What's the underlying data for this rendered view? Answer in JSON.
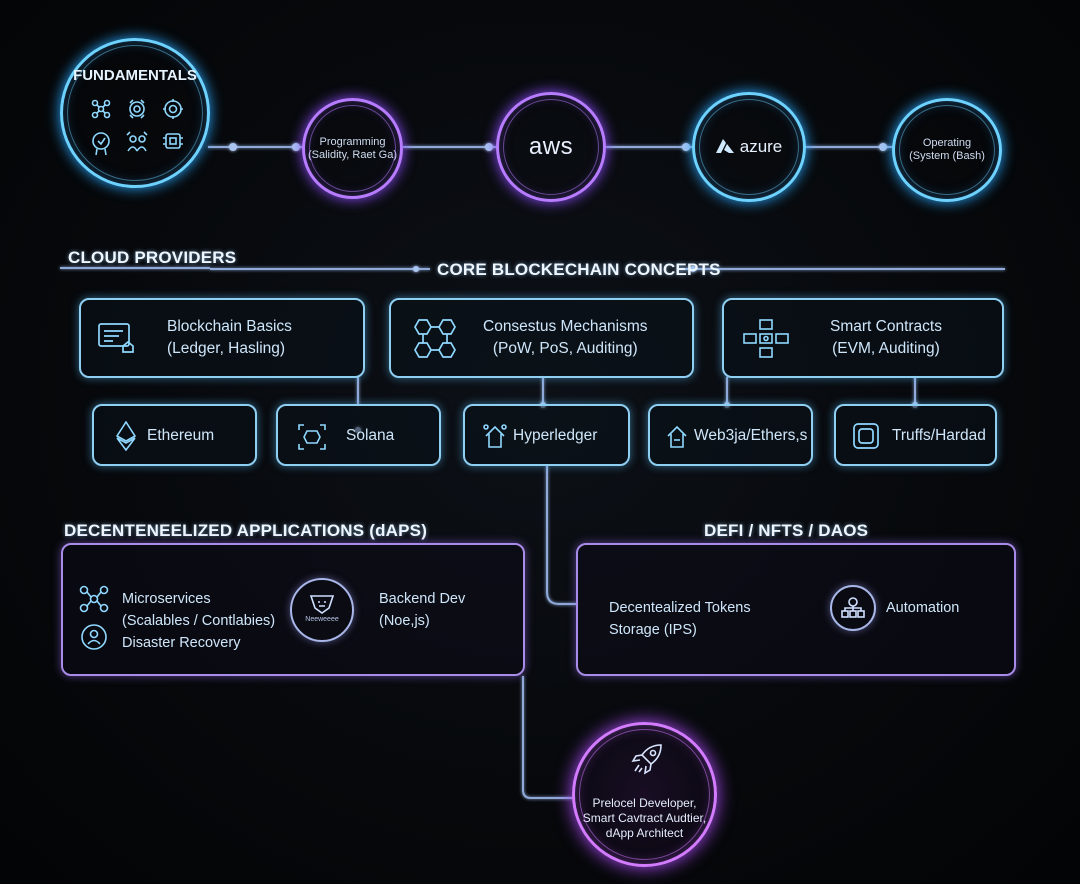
{
  "top_row": {
    "fundamentals": {
      "title": "FUNDAMENTALS"
    },
    "programming": {
      "line1": "Programming",
      "line2": "(Salidity, Raet Ga)"
    },
    "aws": {
      "label": "aws"
    },
    "azure": {
      "label": "azure"
    },
    "operating": {
      "line1": "Operating",
      "line2": "(System (Bash)"
    }
  },
  "section_headings": {
    "cloud_providers": "CLOUD PROVIDERS",
    "core_concepts": "CORE BLOCKECHAIN CONCEPTS",
    "dapps": "DECENTENEELIZED APPLICATIONS (dAPS)",
    "defi": "DEFI / NFTS / DAOS"
  },
  "concept_boxes": [
    {
      "title": "Blockchain Basics",
      "subtitle": "(Ledger, Hasling)"
    },
    {
      "title": "Consestus Mechanisms",
      "subtitle": "(PoW, PoS, Auditing)"
    },
    {
      "title": "Smart Contracts",
      "subtitle": "(EVM, Auditing)"
    }
  ],
  "tools": [
    {
      "label": "Ethereum"
    },
    {
      "label": "Solana"
    },
    {
      "label": "Hyperledger"
    },
    {
      "label": "Web3ja/Ethers,s"
    },
    {
      "label": "Truffs/Hardad"
    }
  ],
  "dapps_box": {
    "microservices_line1": "Microservices",
    "microservices_line2": "(Scalables / Contlabies)",
    "disaster_recovery": "Disaster Recovery",
    "backend_line1": "Backend Dev",
    "backend_line2": "(Noe,js)",
    "badge_text": "Neeweeee"
  },
  "defi_box": {
    "tokens_line1": "Decentealized Tokens",
    "tokens_line2": "Storage (IPS)",
    "automation": "Automation"
  },
  "goal": {
    "line1": "Prelocel Developer,",
    "line2": "Smart Cavtract Audtier,",
    "line3": "dApp Architect"
  },
  "colors": {
    "blue": "#6ed2ff",
    "purple": "#b77cff",
    "pink": "#d47cff",
    "box_blue": "#8fcff2",
    "box_purple": "#a98be8"
  }
}
